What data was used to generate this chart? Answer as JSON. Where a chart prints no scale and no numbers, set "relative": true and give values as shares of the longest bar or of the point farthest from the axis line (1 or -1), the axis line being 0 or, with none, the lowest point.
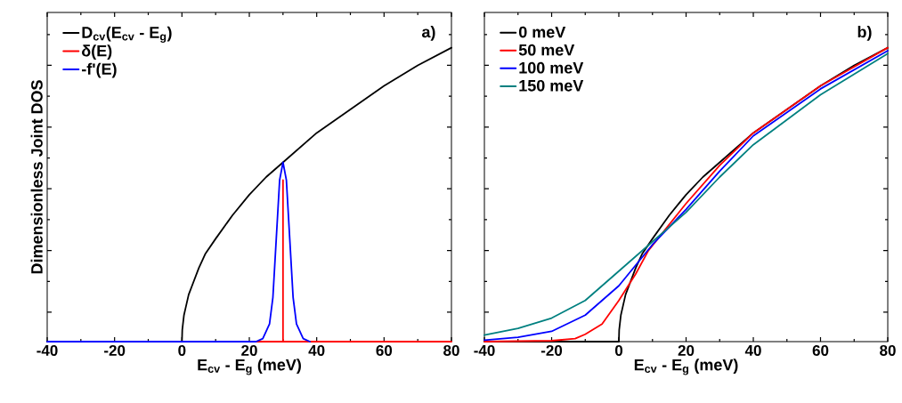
{
  "chart_data": [
    {
      "type": "line",
      "xlabel": "E$_{cv}$ - E$_{g}$ (meV)",
      "ylabel": "Dimensionless Joint DOS",
      "relative": true,
      "xlim": [
        -40,
        80
      ],
      "xticks": [
        -40,
        -20,
        0,
        20,
        40,
        60,
        80
      ],
      "tick_labels": "x",
      "legend": "top left",
      "marker": "none",
      "line_style": "solid",
      "annotations": [
        "a)"
      ],
      "series": [
        {
          "name": "D$_{cv}$(E$_{cv}$ - E$_{g}$)",
          "color": "#000000",
          "x": [
            -40,
            0,
            0.1,
            0.3,
            0.6,
            1,
            2,
            3,
            5,
            7,
            10,
            15,
            20,
            25,
            30,
            40,
            50,
            60,
            70,
            80
          ],
          "values": [
            0,
            0,
            0.04,
            0.06,
            0.09,
            0.11,
            0.16,
            0.19,
            0.25,
            0.3,
            0.35,
            0.43,
            0.5,
            0.56,
            0.61,
            0.71,
            0.79,
            0.87,
            0.94,
            1.0
          ]
        },
        {
          "name": "δ(E)",
          "color": "#ff0000",
          "x": [
            0,
            30,
            30,
            30,
            80
          ],
          "values": [
            0,
            0,
            0.55,
            0,
            0
          ]
        },
        {
          "name": "-f'(E)",
          "color": "#0000ff",
          "x": [
            -40,
            22,
            24,
            26,
            27,
            28,
            29,
            30,
            31,
            32,
            33,
            34,
            36,
            38
          ],
          "values": [
            0,
            0,
            0.01,
            0.06,
            0.15,
            0.35,
            0.55,
            0.61,
            0.55,
            0.35,
            0.15,
            0.06,
            0.01,
            0
          ]
        }
      ]
    },
    {
      "type": "line",
      "xlabel": "E$_{cv}$ - E$_{g}$ (meV)",
      "relative": true,
      "xlim": [
        -40,
        80
      ],
      "xticks": [
        -40,
        -20,
        0,
        20,
        40,
        60,
        80
      ],
      "tick_labels": "x",
      "legend": "top left",
      "marker": "none",
      "line_style": "solid",
      "annotations": [
        "b)"
      ],
      "series": [
        {
          "name": "0 meV",
          "color": "#000000",
          "x": [
            -40,
            0,
            0.1,
            0.3,
            0.6,
            1,
            2,
            3,
            5,
            7,
            10,
            15,
            20,
            25,
            30,
            40,
            50,
            60,
            70,
            80
          ],
          "values": [
            0,
            0,
            0.04,
            0.06,
            0.09,
            0.11,
            0.16,
            0.19,
            0.25,
            0.3,
            0.35,
            0.43,
            0.5,
            0.56,
            0.61,
            0.71,
            0.79,
            0.87,
            0.94,
            1.0
          ]
        },
        {
          "name": "50 meV",
          "color": "#ff0000",
          "x": [
            -40,
            -20,
            -13,
            -10,
            -5,
            0,
            5,
            8.8,
            20,
            30,
            40,
            60,
            80
          ],
          "values": [
            0,
            0.003,
            0.01,
            0.025,
            0.06,
            0.14,
            0.23,
            0.31,
            0.47,
            0.6,
            0.71,
            0.87,
            1.0
          ]
        },
        {
          "name": "100 meV",
          "color": "#0000ff",
          "x": [
            -40,
            -30,
            -20,
            -10,
            0,
            10,
            20,
            30,
            40,
            60,
            80
          ],
          "values": [
            0.005,
            0.015,
            0.035,
            0.09,
            0.19,
            0.33,
            0.45,
            0.58,
            0.7,
            0.86,
            0.99
          ]
        },
        {
          "name": "150 meV",
          "color": "#008080",
          "x": [
            -40,
            -30,
            -20,
            -10,
            0,
            10,
            20,
            30,
            40,
            60,
            80
          ],
          "values": [
            0.022,
            0.045,
            0.08,
            0.14,
            0.24,
            0.34,
            0.44,
            0.56,
            0.67,
            0.84,
            0.98
          ]
        }
      ]
    }
  ]
}
